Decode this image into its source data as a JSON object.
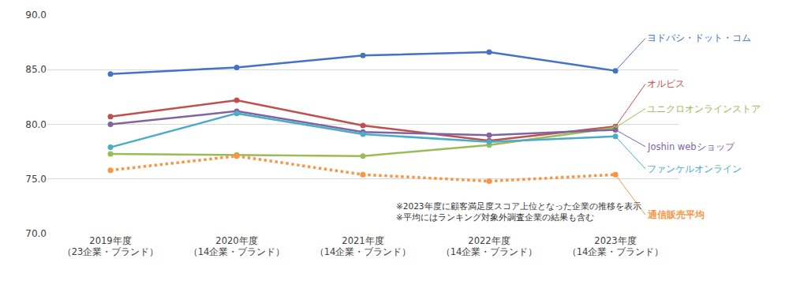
{
  "chart_data": {
    "type": "line",
    "categories": [
      "2019年度\n（23企業・ブランド）",
      "2020年度\n（14企業・ブランド）",
      "2021年度\n（14企業・ブランド）",
      "2022年度\n（14企業・ブランド）",
      "2023年度\n（14企業・ブランド）"
    ],
    "series": [
      {
        "name": "ヨドバシ・ドット・コム",
        "color": "#4472c4",
        "line_style": "solid",
        "marker": "circle",
        "values": [
          84.6,
          85.2,
          86.3,
          86.6,
          84.9
        ]
      },
      {
        "name": "オルビス",
        "color": "#c0504d",
        "line_style": "solid",
        "marker": "circle",
        "values": [
          80.7,
          82.2,
          79.9,
          78.5,
          79.8
        ]
      },
      {
        "name": "ユニクロオンラインストア",
        "color": "#9bbb59",
        "line_style": "solid",
        "marker": "circle",
        "values": [
          77.3,
          77.2,
          77.1,
          78.1,
          79.7
        ]
      },
      {
        "name": "Joshin webショップ",
        "color": "#8064a2",
        "line_style": "solid",
        "marker": "circle",
        "values": [
          80.0,
          81.2,
          79.3,
          79.0,
          79.5
        ]
      },
      {
        "name": "ファンケルオンライン",
        "color": "#4bacc6",
        "line_style": "solid",
        "marker": "circle",
        "values": [
          77.9,
          81.0,
          79.1,
          78.4,
          78.9
        ]
      },
      {
        "name": "通信販売平均",
        "color": "#f79646",
        "line_style": "dot",
        "marker": "circle",
        "values": [
          75.8,
          77.1,
          75.4,
          74.8,
          75.4
        ]
      }
    ],
    "ylim": [
      70,
      90
    ],
    "yticks": [
      {
        "value": 70,
        "label": "70.0"
      },
      {
        "value": 75,
        "label": "75.0"
      },
      {
        "value": 80,
        "label": "80.0"
      },
      {
        "value": 85,
        "label": "85.0"
      },
      {
        "value": 90,
        "label": "90.0"
      }
    ],
    "grid": true,
    "notes": [
      "※2023年度に顧客満足度スコア上位となった企業の推移を表示",
      "※平均にはランキング対象外調査企業の結果も含む"
    ]
  }
}
